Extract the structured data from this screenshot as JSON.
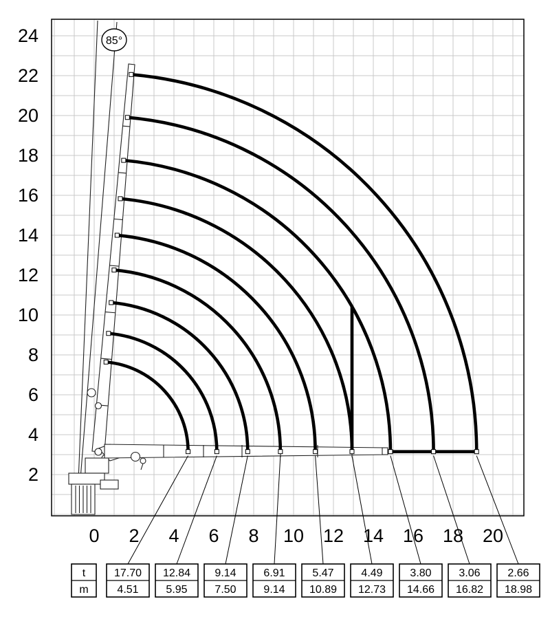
{
  "colors": {
    "ink": "#000000",
    "grid": "#c9c9c9",
    "paper": "#ffffff",
    "crane": "#1f1f1f"
  },
  "angle_badge": {
    "label": "85°"
  },
  "axes": {
    "x_ticks": [
      "0",
      "2",
      "4",
      "6",
      "8",
      "10",
      "12",
      "14",
      "16",
      "18",
      "20"
    ],
    "y_ticks": [
      "2",
      "4",
      "6",
      "8",
      "10",
      "12",
      "14",
      "16",
      "18",
      "20",
      "22",
      "24"
    ]
  },
  "legend": {
    "top": "t",
    "bottom": "m"
  },
  "table": {
    "columns": [
      {
        "t": "17.70",
        "m": "4.51"
      },
      {
        "t": "12.84",
        "m": "5.95"
      },
      {
        "t": "9.14",
        "m": "7.50"
      },
      {
        "t": "6.91",
        "m": "9.14"
      },
      {
        "t": "5.47",
        "m": "10.89"
      },
      {
        "t": "4.49",
        "m": "12.73"
      },
      {
        "t": "3.80",
        "m": "14.66"
      },
      {
        "t": "3.06",
        "m": "16.82"
      },
      {
        "t": "2.66",
        "m": "18.98"
      }
    ]
  },
  "chart_data": {
    "type": "line",
    "title": "",
    "xlabel": "",
    "ylabel": "",
    "grid": true,
    "boom_angle_deg": 85,
    "pivot": {
      "x": 0.2,
      "y": 3.15
    },
    "x_range": [
      -2.1,
      21.5
    ],
    "y_range": [
      0,
      24.9
    ],
    "capacity_points": [
      {
        "load_t": 17.7,
        "outreach_m": 4.51
      },
      {
        "load_t": 12.84,
        "outreach_m": 5.95
      },
      {
        "load_t": 9.14,
        "outreach_m": 7.5
      },
      {
        "load_t": 6.91,
        "outreach_m": 9.14
      },
      {
        "load_t": 5.47,
        "outreach_m": 10.89
      },
      {
        "load_t": 4.49,
        "outreach_m": 12.73
      },
      {
        "load_t": 3.8,
        "outreach_m": 14.66
      },
      {
        "load_t": 3.06,
        "outreach_m": 16.82
      },
      {
        "load_t": 2.66,
        "outreach_m": 18.98
      }
    ],
    "limit_line": {
      "at_outreach_m": 12.73,
      "up_to_arc_m": 14.66
    },
    "bottom_envelope_m": [
      14.66,
      18.98
    ]
  }
}
